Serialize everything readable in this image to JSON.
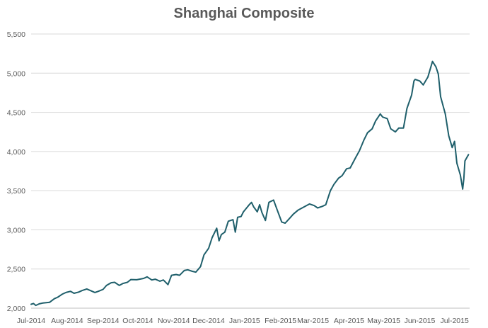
{
  "chart_data": {
    "type": "line",
    "title": "Shanghai Composite",
    "xlabel": "",
    "ylabel": "",
    "ylim": [
      2000,
      5500
    ],
    "yticks": [
      2000,
      2500,
      3000,
      3500,
      4000,
      4500,
      5000,
      5500
    ],
    "ytick_labels": [
      "2,000",
      "2,500",
      "3,000",
      "3,500",
      "4,000",
      "4,500",
      "5,000",
      "5,500"
    ],
    "xlim": [
      "2014-07-01",
      "2015-07-14"
    ],
    "xticks": [
      "2014-07-01",
      "2014-08-01",
      "2014-09-01",
      "2014-10-01",
      "2014-11-01",
      "2014-12-01",
      "2015-01-01",
      "2015-02-01",
      "2015-03-01",
      "2015-04-01",
      "2015-05-01",
      "2015-06-01",
      "2015-07-01"
    ],
    "xtick_labels": [
      "Jul-2014",
      "Aug-2014",
      "Sep-2014",
      "Oct-2014",
      "Nov-2014",
      "Dec-2014",
      "Jan-2015",
      "Feb-2015",
      "Mar-2015",
      "Apr-2015",
      "May-2015",
      "Jun-2015",
      "Jul-2015"
    ],
    "grid": true,
    "line_color": "#1f5f6b",
    "grid_color": "#d9d9d9",
    "series": [
      {
        "x": [
          "2014-07-01",
          "2014-07-03",
          "2014-07-05",
          "2014-07-08",
          "2014-07-11",
          "2014-07-14",
          "2014-07-17",
          "2014-07-21",
          "2014-07-24",
          "2014-07-28",
          "2014-07-31",
          "2014-08-04",
          "2014-08-07",
          "2014-08-11",
          "2014-08-14",
          "2014-08-18",
          "2014-08-21",
          "2014-08-25",
          "2014-08-28",
          "2014-09-01",
          "2014-09-04",
          "2014-09-08",
          "2014-09-11",
          "2014-09-15",
          "2014-09-18",
          "2014-09-22",
          "2014-09-25",
          "2014-09-30",
          "2014-10-06",
          "2014-10-09",
          "2014-10-13",
          "2014-10-16",
          "2014-10-20",
          "2014-10-23",
          "2014-10-27",
          "2014-10-30",
          "2014-11-03",
          "2014-11-06",
          "2014-11-10",
          "2014-11-13",
          "2014-11-17",
          "2014-11-20",
          "2014-11-24",
          "2014-11-27",
          "2014-12-01",
          "2014-12-04",
          "2014-12-08",
          "2014-12-10",
          "2014-12-12",
          "2014-12-15",
          "2014-12-18",
          "2014-12-22",
          "2014-12-24",
          "2014-12-26",
          "2014-12-29",
          "2014-12-31",
          "2015-01-05",
          "2015-01-07",
          "2015-01-09",
          "2015-01-12",
          "2015-01-14",
          "2015-01-16",
          "2015-01-19",
          "2015-01-22",
          "2015-01-26",
          "2015-01-29",
          "2015-02-02",
          "2015-02-05",
          "2015-02-09",
          "2015-02-12",
          "2015-02-16",
          "2015-02-26",
          "2015-03-02",
          "2015-03-05",
          "2015-03-09",
          "2015-03-12",
          "2015-03-16",
          "2015-03-19",
          "2015-03-23",
          "2015-03-26",
          "2015-03-30",
          "2015-04-02",
          "2015-04-07",
          "2015-04-10",
          "2015-04-14",
          "2015-04-17",
          "2015-04-21",
          "2015-04-24",
          "2015-04-28",
          "2015-04-30",
          "2015-05-04",
          "2015-05-07",
          "2015-05-11",
          "2015-05-14",
          "2015-05-18",
          "2015-05-21",
          "2015-05-25",
          "2015-05-27",
          "2015-05-28",
          "2015-06-01",
          "2015-06-04",
          "2015-06-08",
          "2015-06-12",
          "2015-06-15",
          "2015-06-17",
          "2015-06-19",
          "2015-06-23",
          "2015-06-26",
          "2015-06-29",
          "2015-07-01",
          "2015-07-03",
          "2015-07-06",
          "2015-07-08",
          "2015-07-09",
          "2015-07-10",
          "2015-07-13"
        ],
        "values": [
          2050,
          2060,
          2035,
          2055,
          2065,
          2070,
          2075,
          2120,
          2140,
          2180,
          2200,
          2215,
          2190,
          2205,
          2225,
          2245,
          2225,
          2200,
          2215,
          2240,
          2290,
          2325,
          2330,
          2290,
          2315,
          2330,
          2365,
          2363,
          2380,
          2400,
          2360,
          2370,
          2345,
          2360,
          2300,
          2420,
          2430,
          2420,
          2480,
          2490,
          2470,
          2460,
          2530,
          2680,
          2765,
          2900,
          3020,
          2860,
          2940,
          2970,
          3110,
          3130,
          2970,
          3160,
          3170,
          3230,
          3320,
          3350,
          3290,
          3230,
          3320,
          3220,
          3120,
          3350,
          3380,
          3260,
          3100,
          3085,
          3150,
          3200,
          3250,
          3330,
          3310,
          3280,
          3300,
          3320,
          3500,
          3580,
          3660,
          3690,
          3780,
          3790,
          3930,
          4010,
          4150,
          4240,
          4290,
          4390,
          4480,
          4440,
          4420,
          4290,
          4250,
          4300,
          4300,
          4550,
          4720,
          4900,
          4920,
          4900,
          4850,
          4950,
          5150,
          5080,
          4990,
          4700,
          4480,
          4200,
          4050,
          4130,
          3850,
          3700,
          3520,
          3650,
          3880,
          3960
        ]
      }
    ]
  }
}
